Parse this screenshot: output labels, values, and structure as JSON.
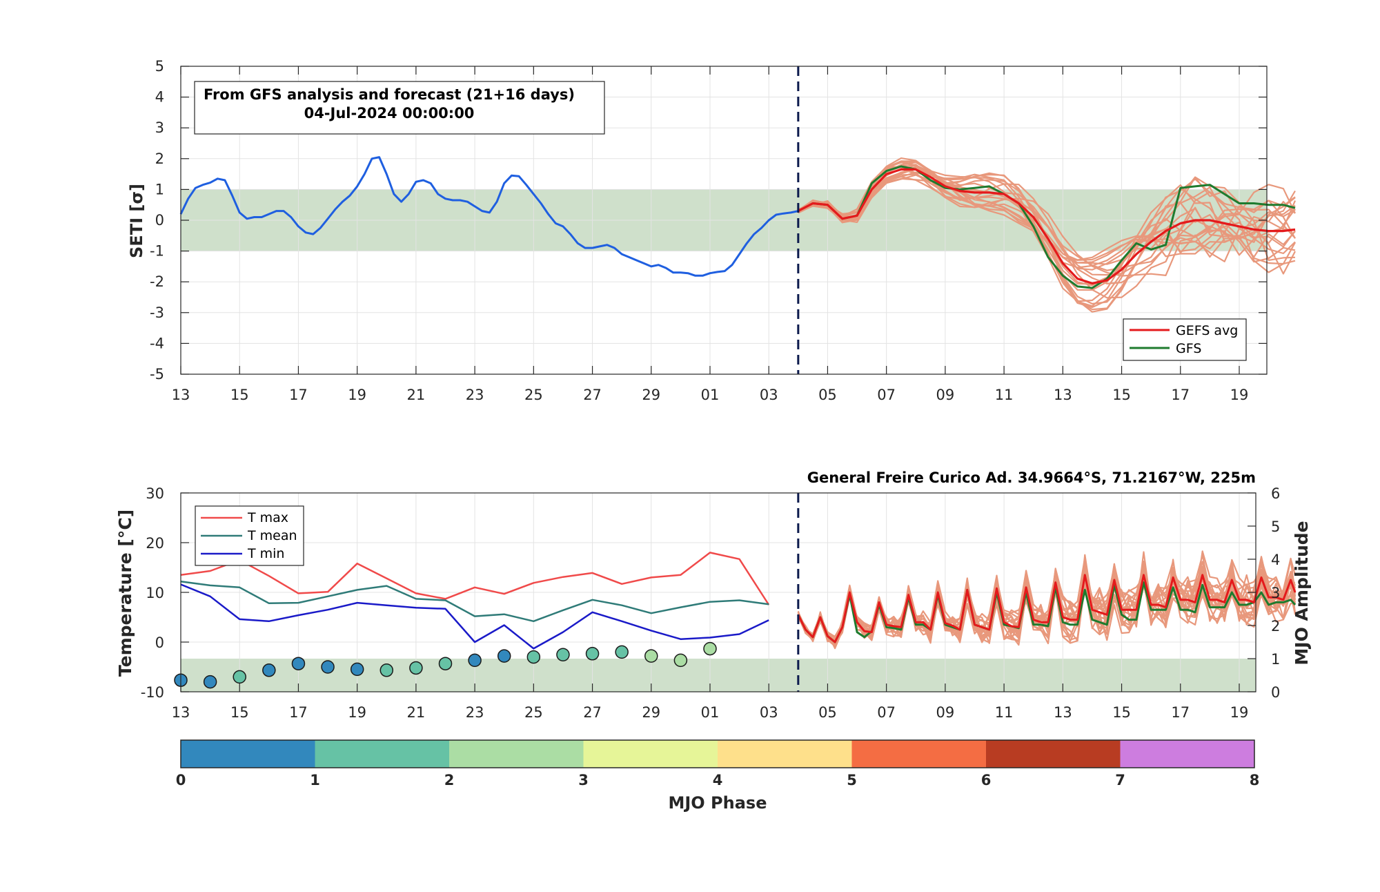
{
  "chart_data": [
    {
      "type": "line",
      "ylabel": "SETI [σ]",
      "ylim": [
        -5,
        5
      ],
      "yticks": [
        -5,
        -4,
        -3,
        -2,
        -1,
        0,
        1,
        2,
        3,
        4,
        5
      ],
      "x_tick_labels": [
        "13",
        "15",
        "17",
        "19",
        "21",
        "23",
        "25",
        "27",
        "29",
        "01",
        "03",
        "05",
        "07",
        "09",
        "11",
        "13",
        "15",
        "17",
        "19"
      ],
      "x_day_range": [
        0,
        37.9
      ],
      "forecast_start_day": 21,
      "info_box": {
        "line1": "From GFS analysis and forecast (21+16 days)",
        "line2": "04-Jul-2024 00:00:00"
      },
      "normal_band": [
        -1,
        1
      ],
      "legend": {
        "position": "bottom-right",
        "entries": [
          "GEFS avg",
          "GFS"
        ]
      },
      "colors": {
        "analysis": "#1f5fe0",
        "gefs_avg": "#e41a1c",
        "gfs": "#1e7b2e",
        "members": "#e8987c",
        "band": "#cfe0cb",
        "forecast_line": "#0c1a4d"
      },
      "series": [
        {
          "name": "",
          "x": [
            0,
            0.25,
            0.5,
            0.75,
            1,
            1.25,
            1.5,
            1.75,
            2,
            2.25,
            2.5,
            2.75,
            3,
            3.25,
            3.5,
            3.75,
            4,
            4.25,
            4.5,
            4.75,
            5,
            5.25,
            5.5,
            5.75,
            6,
            6.25,
            6.5,
            6.75,
            7,
            7.25,
            7.5,
            7.75,
            8,
            8.25,
            8.5,
            8.75,
            9,
            9.25,
            9.5,
            9.75,
            10,
            10.25,
            10.5,
            10.75,
            11,
            11.25,
            11.5,
            11.75,
            12,
            12.25,
            12.5,
            12.75,
            13,
            13.25,
            13.5,
            13.75,
            14,
            14.25,
            14.5,
            14.75,
            15,
            15.25,
            15.5,
            15.75,
            16,
            16.25,
            16.5,
            16.75,
            17,
            17.25,
            17.5,
            17.75,
            18,
            18.25,
            18.5,
            18.75,
            19,
            19.25,
            19.5,
            19.75,
            20,
            20.25,
            20.5,
            20.75,
            21
          ],
          "values": [
            0.2,
            0.7,
            1.05,
            1.15,
            1.22,
            1.35,
            1.3,
            0.8,
            0.25,
            0.05,
            0.1,
            0.1,
            0.2,
            0.3,
            0.3,
            0.1,
            -0.2,
            -0.4,
            -0.45,
            -0.25,
            0.05,
            0.35,
            0.6,
            0.8,
            1.1,
            1.5,
            2.0,
            2.05,
            1.5,
            0.85,
            0.6,
            0.85,
            1.25,
            1.3,
            1.2,
            0.85,
            0.7,
            0.65,
            0.65,
            0.6,
            0.45,
            0.3,
            0.25,
            0.6,
            1.2,
            1.45,
            1.43,
            1.15,
            0.85,
            0.55,
            0.2,
            -0.1,
            -0.2,
            -0.45,
            -0.75,
            -0.9,
            -0.9,
            -0.85,
            -0.8,
            -0.9,
            -1.1,
            -1.2,
            -1.3,
            -1.4,
            -1.5,
            -1.45,
            -1.55,
            -1.7,
            -1.7,
            -1.72,
            -1.8,
            -1.8,
            -1.72,
            -1.68,
            -1.65,
            -1.45,
            -1.1,
            -0.75,
            -0.45,
            -0.25,
            0.0,
            0.18,
            0.22,
            0.25,
            0.3
          ]
        },
        {
          "name": "GEFS avg",
          "x": [
            21,
            21.5,
            22,
            22.5,
            23,
            23.5,
            24,
            24.5,
            25,
            25.5,
            26,
            26.5,
            27,
            27.5,
            28,
            28.5,
            29,
            29.5,
            30,
            30.5,
            31,
            31.5,
            32,
            32.5,
            33,
            33.5,
            34,
            34.5,
            35,
            35.5,
            36,
            36.5,
            37,
            37.5,
            37.9
          ],
          "values": [
            0.3,
            0.55,
            0.5,
            0.05,
            0.15,
            1.0,
            1.5,
            1.65,
            1.65,
            1.4,
            1.1,
            0.95,
            0.9,
            0.9,
            0.85,
            0.55,
            0.1,
            -0.6,
            -1.4,
            -1.9,
            -2.05,
            -1.95,
            -1.6,
            -1.1,
            -0.7,
            -0.35,
            -0.1,
            0.0,
            0.0,
            -0.1,
            -0.2,
            -0.3,
            -0.35,
            -0.35,
            -0.3
          ]
        },
        {
          "name": "GFS",
          "x": [
            21,
            21.5,
            22,
            22.5,
            23,
            23.5,
            24,
            24.5,
            25,
            25.5,
            26,
            26.5,
            27,
            27.5,
            28,
            28.5,
            29,
            29.5,
            30,
            30.5,
            31,
            31.5,
            32,
            32.5,
            33,
            33.5,
            34,
            34.5,
            35,
            35.5,
            36,
            36.5,
            37,
            37.5,
            37.9
          ],
          "values": [
            0.3,
            0.55,
            0.5,
            0.05,
            0.15,
            1.2,
            1.6,
            1.75,
            1.65,
            1.3,
            1.05,
            1.0,
            1.05,
            1.1,
            0.85,
            0.55,
            -0.2,
            -1.2,
            -1.8,
            -2.15,
            -2.2,
            -1.9,
            -1.3,
            -0.75,
            -0.95,
            -0.8,
            1.05,
            1.1,
            1.15,
            0.85,
            0.55,
            0.55,
            0.5,
            0.5,
            0.4
          ]
        }
      ]
    },
    {
      "type": "line",
      "title": "General Freire Curico Ad. 34.9664°S, 71.2167°W, 225m",
      "ylabel": "Temperature [°C]",
      "ylim": [
        -10,
        30
      ],
      "yticks": [
        -10,
        0,
        10,
        20,
        30
      ],
      "y2label": "MJO Amplitude",
      "y2lim": [
        0,
        6
      ],
      "y2ticks": [
        0,
        1,
        2,
        3,
        4,
        5,
        6
      ],
      "x_tick_labels": [
        "13",
        "15",
        "17",
        "19",
        "21",
        "23",
        "25",
        "27",
        "29",
        "01",
        "03",
        "05",
        "07",
        "09",
        "11",
        "13",
        "15",
        "17",
        "19"
      ],
      "x_day_range": [
        0,
        37.9
      ],
      "forecast_start_day": 21,
      "mjo_band": [
        0,
        1
      ],
      "legend": {
        "position": "top-left",
        "entries": [
          "T max",
          "T mean",
          "T min"
        ]
      },
      "colors": {
        "tmax": "#f04a4a",
        "tmean": "#2f7b78",
        "tmin": "#1a1ac8",
        "gefs_avg": "#e41a1c",
        "gfs": "#1e7b2e",
        "members": "#e8987c",
        "band": "#cfe0cb",
        "forecast_line": "#0c1a4d"
      },
      "series": [
        {
          "name": "T max",
          "x": [
            0,
            1,
            2,
            3,
            4,
            5,
            6,
            7,
            8,
            9,
            10,
            11,
            12,
            13,
            14,
            15,
            16,
            17,
            18,
            19,
            20
          ],
          "values": [
            13.5,
            14.3,
            16.5,
            13.3,
            9.8,
            10.1,
            15.8,
            12.8,
            9.8,
            8.7,
            11.0,
            9.7,
            11.9,
            13.1,
            13.9,
            11.7,
            13.0,
            13.5,
            18.0,
            16.7,
            7.5
          ]
        },
        {
          "name": "T mean",
          "x": [
            0,
            1,
            2,
            3,
            4,
            5,
            6,
            7,
            8,
            9,
            10,
            11,
            12,
            13,
            14,
            15,
            16,
            17,
            18,
            19,
            20
          ],
          "values": [
            12.2,
            11.4,
            11.0,
            7.8,
            7.9,
            9.2,
            10.5,
            11.3,
            8.7,
            8.4,
            5.2,
            5.6,
            4.2,
            6.4,
            8.5,
            7.4,
            5.8,
            7.0,
            8.1,
            8.4,
            7.6
          ]
        },
        {
          "name": "T min",
          "x": [
            0,
            1,
            2,
            3,
            4,
            5,
            6,
            7,
            8,
            9,
            10,
            11,
            12,
            13,
            14,
            15,
            16,
            17,
            18,
            19,
            20
          ],
          "values": [
            11.6,
            9.2,
            4.6,
            4.2,
            5.4,
            6.5,
            7.9,
            7.4,
            6.9,
            6.7,
            0.0,
            3.4,
            -1.3,
            2.0,
            6.0,
            4.2,
            2.3,
            0.6,
            0.9,
            1.6,
            4.4
          ]
        },
        {
          "name": "GEFS avg",
          "x": [
            21,
            21.25,
            21.5,
            21.75,
            22,
            22.25,
            22.5,
            22.75,
            23,
            23.25,
            23.5,
            23.75,
            24,
            24.25,
            24.5,
            24.75,
            25,
            25.25,
            25.5,
            25.75,
            26,
            26.25,
            26.5,
            26.75,
            27,
            27.25,
            27.5,
            27.75,
            28,
            28.25,
            28.5,
            28.75,
            29,
            29.25,
            29.5,
            29.75,
            30,
            30.25,
            30.5,
            30.75,
            31,
            31.25,
            31.5,
            31.75,
            32,
            32.25,
            32.5,
            32.75,
            33,
            33.25,
            33.5,
            33.75,
            34,
            34.25,
            34.5,
            34.75,
            35,
            35.25,
            35.5,
            35.75,
            36,
            36.25,
            36.5,
            36.75,
            37,
            37.25,
            37.5,
            37.75,
            37.9
          ],
          "values": [
            5.5,
            2.5,
            1.0,
            5.0,
            1.2,
            0.0,
            3.0,
            10.0,
            4.0,
            2.2,
            2.0,
            8.0,
            3.5,
            3.2,
            3.0,
            9.5,
            4.0,
            4.0,
            2.5,
            10.0,
            3.8,
            3.3,
            2.5,
            10.5,
            3.5,
            3.0,
            2.5,
            10.8,
            4.0,
            3.2,
            3.0,
            11.0,
            4.5,
            4.0,
            4.0,
            12.0,
            5.0,
            4.5,
            4.5,
            13.5,
            6.5,
            6.0,
            5.5,
            12.5,
            6.5,
            6.5,
            6.5,
            13.5,
            7.5,
            7.5,
            7.0,
            13.0,
            8.5,
            8.5,
            8.0,
            13.5,
            8.5,
            8.5,
            8.0,
            12.5,
            8.5,
            8.5,
            8.0,
            13.0,
            9.0,
            9.0,
            8.5,
            12.5,
            10.0
          ]
        },
        {
          "name": "GFS",
          "x": [
            21,
            21.25,
            21.5,
            21.75,
            22,
            22.25,
            22.5,
            22.75,
            23,
            23.25,
            23.5,
            23.75,
            24,
            24.25,
            24.5,
            24.75,
            25,
            25.25,
            25.5,
            25.75,
            26,
            26.25,
            26.5,
            26.75,
            27,
            27.25,
            27.5,
            27.75,
            28,
            28.25,
            28.5,
            28.75,
            29,
            29.25,
            29.5,
            29.75,
            30,
            30.25,
            30.5,
            30.75,
            31,
            31.25,
            31.5,
            31.75,
            32,
            32.25,
            32.5,
            32.75,
            33,
            33.25,
            33.5,
            33.75,
            34,
            34.25,
            34.5,
            34.75,
            35,
            35.25,
            35.5,
            35.75,
            36,
            36.25,
            36.5,
            36.75,
            37,
            37.25,
            37.5,
            37.75,
            37.9
          ],
          "values": [
            5.5,
            2.5,
            1.0,
            5.0,
            1.2,
            0.0,
            3.0,
            9.5,
            2.0,
            1.0,
            2.2,
            7.5,
            3.0,
            2.8,
            2.5,
            9.0,
            3.5,
            3.5,
            2.5,
            9.5,
            3.5,
            3.0,
            2.5,
            10.5,
            3.5,
            3.0,
            2.5,
            10.0,
            3.5,
            3.2,
            2.8,
            10.0,
            3.5,
            3.5,
            3.2,
            11.0,
            4.0,
            3.5,
            3.5,
            10.5,
            4.5,
            4.0,
            3.5,
            11.5,
            5.5,
            4.5,
            4.5,
            12.0,
            6.5,
            6.5,
            6.5,
            11.0,
            6.5,
            6.5,
            6.0,
            11.5,
            7.0,
            7.0,
            7.0,
            10.0,
            7.5,
            7.5,
            8.0,
            10.0,
            7.5,
            8.0,
            8.0,
            8.5,
            7.5
          ]
        }
      ],
      "mjo_points": {
        "x": [
          0,
          1,
          2,
          3,
          4,
          5,
          6,
          7,
          8,
          9,
          10,
          11,
          12,
          13,
          14,
          15,
          16,
          17,
          18
        ],
        "amplitude": [
          0.35,
          0.3,
          0.45,
          0.65,
          0.85,
          0.75,
          0.68,
          0.65,
          0.72,
          0.85,
          0.95,
          1.08,
          1.05,
          1.12,
          1.15,
          1.2,
          1.08,
          0.95,
          1.3
        ],
        "phase": [
          0,
          0,
          1,
          0,
          0,
          0,
          0,
          1,
          1,
          1,
          0,
          0,
          1,
          1,
          1,
          1,
          2,
          2,
          2
        ]
      }
    },
    {
      "type": "colorbar",
      "xlabel": "MJO Phase",
      "tick_labels": [
        "0",
        "1",
        "2",
        "3",
        "4",
        "5",
        "6",
        "7",
        "8"
      ],
      "colors": [
        "#3288bd",
        "#66c2a5",
        "#abdda4",
        "#e6f598",
        "#fee08b",
        "#f46d43",
        "#b83c22",
        "#cd7ddf"
      ]
    }
  ]
}
